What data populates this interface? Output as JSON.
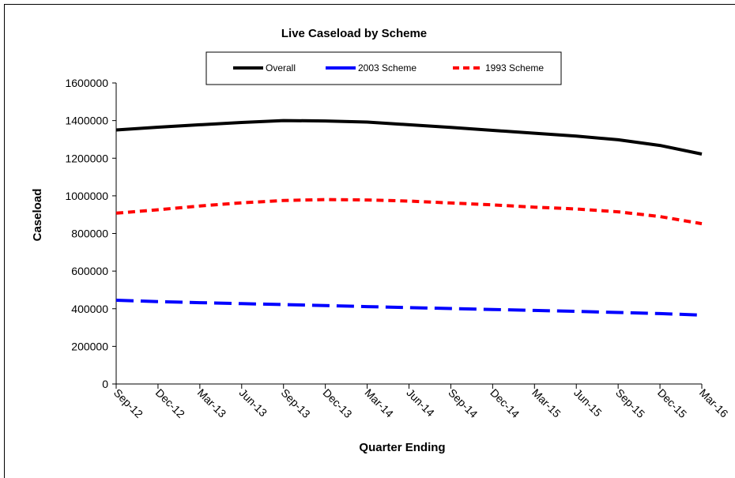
{
  "chart_data": {
    "type": "line",
    "title": "Live Caseload by Scheme",
    "xlabel": "Quarter Ending",
    "ylabel": "Caseload",
    "ylim": [
      0,
      1600000
    ],
    "yticks": [
      0,
      200000,
      400000,
      600000,
      800000,
      1000000,
      1200000,
      1400000,
      1600000
    ],
    "grid": false,
    "legend_position": "top-center",
    "categories": [
      "Sep-12",
      "Dec-12",
      "Mar-13",
      "Jun-13",
      "Sep-13",
      "Dec-13",
      "Mar-14",
      "Jun-14",
      "Sep-14",
      "Dec-14",
      "Mar-15",
      "Jun-15",
      "Sep-15",
      "Dec-15",
      "Mar-16"
    ],
    "series": [
      {
        "name": "Overall",
        "color": "#000000",
        "dash": "solid",
        "values": [
          1350000,
          1365000,
          1378000,
          1390000,
          1400000,
          1398000,
          1392000,
          1378000,
          1364000,
          1348000,
          1333000,
          1318000,
          1298000,
          1268000,
          1222000
        ]
      },
      {
        "name": "2003 Scheme",
        "color": "#0000ff",
        "dash": "long-dash",
        "values": [
          445000,
          438000,
          432000,
          427000,
          422000,
          417000,
          411000,
          406000,
          401000,
          396000,
          391000,
          386000,
          380000,
          374000,
          366000
        ]
      },
      {
        "name": "1993 Scheme",
        "color": "#ff0000",
        "dash": "short-dash",
        "values": [
          908000,
          926000,
          946000,
          963000,
          975000,
          980000,
          978000,
          972000,
          962000,
          952000,
          940000,
          930000,
          915000,
          890000,
          852000
        ]
      }
    ]
  }
}
